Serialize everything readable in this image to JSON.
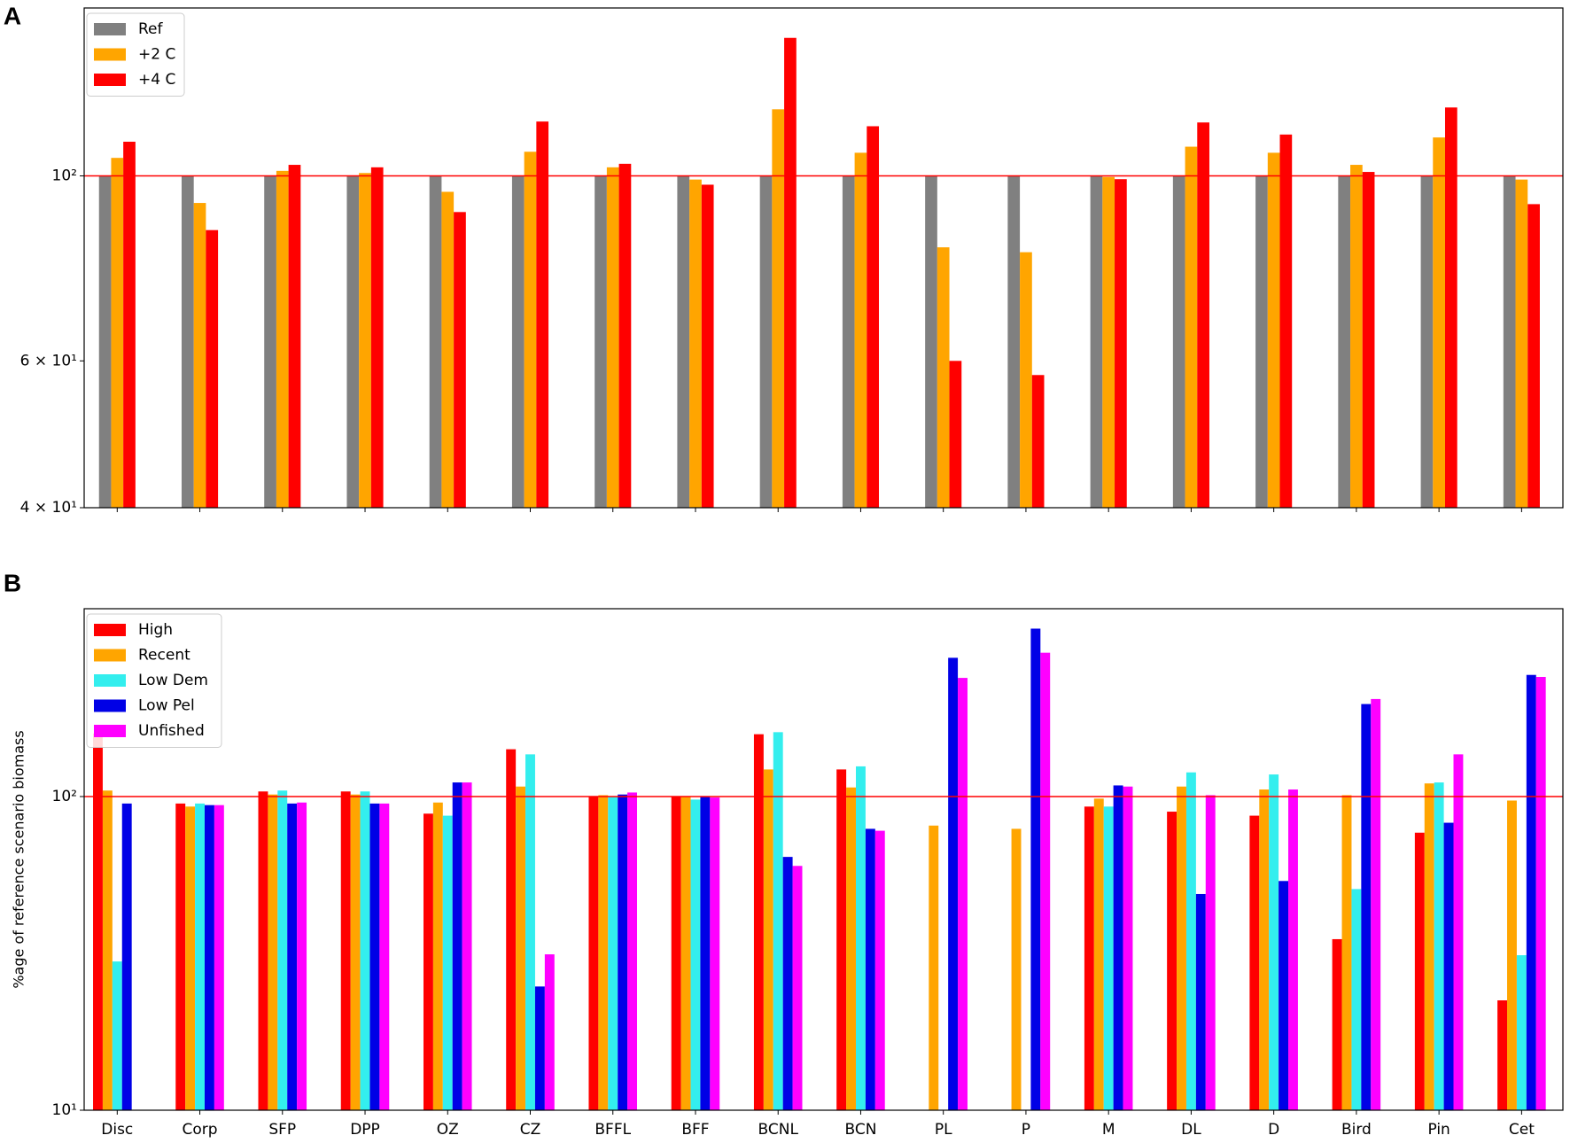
{
  "chart_data": [
    {
      "type": "bar",
      "panel_label": "A",
      "log_y": true,
      "categories": [
        null,
        null,
        null,
        null,
        null,
        null,
        null,
        null,
        null,
        null,
        null,
        null,
        null,
        null,
        null,
        null,
        null,
        null
      ],
      "series": [
        {
          "name": "Ref",
          "color": "#808080",
          "values": [
            100,
            100,
            100,
            100,
            100,
            100,
            100,
            100,
            100,
            100,
            100,
            100,
            100,
            100,
            100,
            100,
            100,
            100
          ]
        },
        {
          "name": "+2 C",
          "color": "#ffa500",
          "values": [
            105.1,
            92.8,
            101.4,
            100.8,
            95.7,
            106.9,
            102.4,
            99.0,
            120.2,
            106.6,
            82.1,
            81.0,
            99.7,
            108.4,
            106.6,
            103.1,
            111.2,
            99.0
          ]
        },
        {
          "name": "+4 C",
          "color": "#ff0000",
          "values": [
            109.9,
            86.1,
            103.1,
            102.4,
            90.5,
            116.2,
            103.4,
            97.6,
            146.4,
            114.7,
            60.0,
            57.7,
            99.1,
            115.9,
            112.1,
            101.1,
            120.8,
            92.5
          ]
        }
      ],
      "ylim": [
        40,
        159
      ],
      "yticks": [
        {
          "value": 40,
          "label": "4 × 10¹"
        },
        {
          "value": 60,
          "label": "6 × 10¹"
        },
        {
          "value": 100,
          "label": "10²"
        }
      ],
      "hline": 100,
      "hline_color": "#ff0000",
      "legend": "upper left",
      "grid": false
    },
    {
      "type": "bar",
      "panel_label": "B",
      "log_y": true,
      "ylabel": "%age of reference scenario biomass",
      "categories": [
        "Disc",
        "Corp",
        "SFP",
        "DPP",
        "OZ",
        "CZ",
        "BFFL",
        "BFF",
        "BCNL",
        "BCN",
        "PL",
        "P",
        "M",
        "DL",
        "D",
        "Bird",
        "Pin",
        "Cet"
      ],
      "series": [
        {
          "name": "High",
          "color": "#ff0000",
          "values": [
            159,
            95,
            103.8,
            103.8,
            88.2,
            141.5,
            100,
            100,
            158,
            122,
            null,
            null,
            92.9,
            89.5,
            86.9,
            35.1,
            76.7,
            22.4
          ]
        },
        {
          "name": "Recent",
          "color": "#ffa500",
          "values": [
            104.5,
            92.9,
            101.5,
            101.5,
            95.7,
            107.6,
            101,
            100,
            122,
            106.9,
            80.8,
            78.9,
            98.5,
            107.6,
            105.3,
            101,
            110.1,
            97.1
          ]
        },
        {
          "name": "Low Dem",
          "color": "#33eeee",
          "values": [
            29.8,
            95,
            104.5,
            103.8,
            86.9,
            136.3,
            100,
            97.8,
            160.4,
            124.8,
            null,
            null,
            92.9,
            119.4,
            117.6,
            50.7,
            110.9,
            31.2
          ]
        },
        {
          "name": "Low Pel",
          "color": "#0000e6",
          "values": [
            95,
            93.9,
            95,
            95,
            110.9,
            24.8,
            101.5,
            100,
            64.2,
            78.9,
            276.9,
            343,
            108.5,
            48.9,
            53.8,
            197.2,
            82.5,
            244.2
          ]
        },
        {
          "name": "Unfished",
          "color": "#ff00ff",
          "values": [
            null,
            93.9,
            95.7,
            95,
            110.9,
            31.4,
            103,
            99.3,
            60.1,
            77.8,
            238.9,
            287.4,
            107.6,
            101,
            105.3,
            204.6,
            136.3,
            240.6
          ]
        }
      ],
      "ylim": [
        10,
        397
      ],
      "yticks": [
        {
          "value": 10,
          "label": "10¹"
        },
        {
          "value": 100,
          "label": "10²"
        }
      ],
      "hline": 100,
      "hline_color": "#ff0000",
      "legend": "upper left",
      "grid": false
    }
  ]
}
